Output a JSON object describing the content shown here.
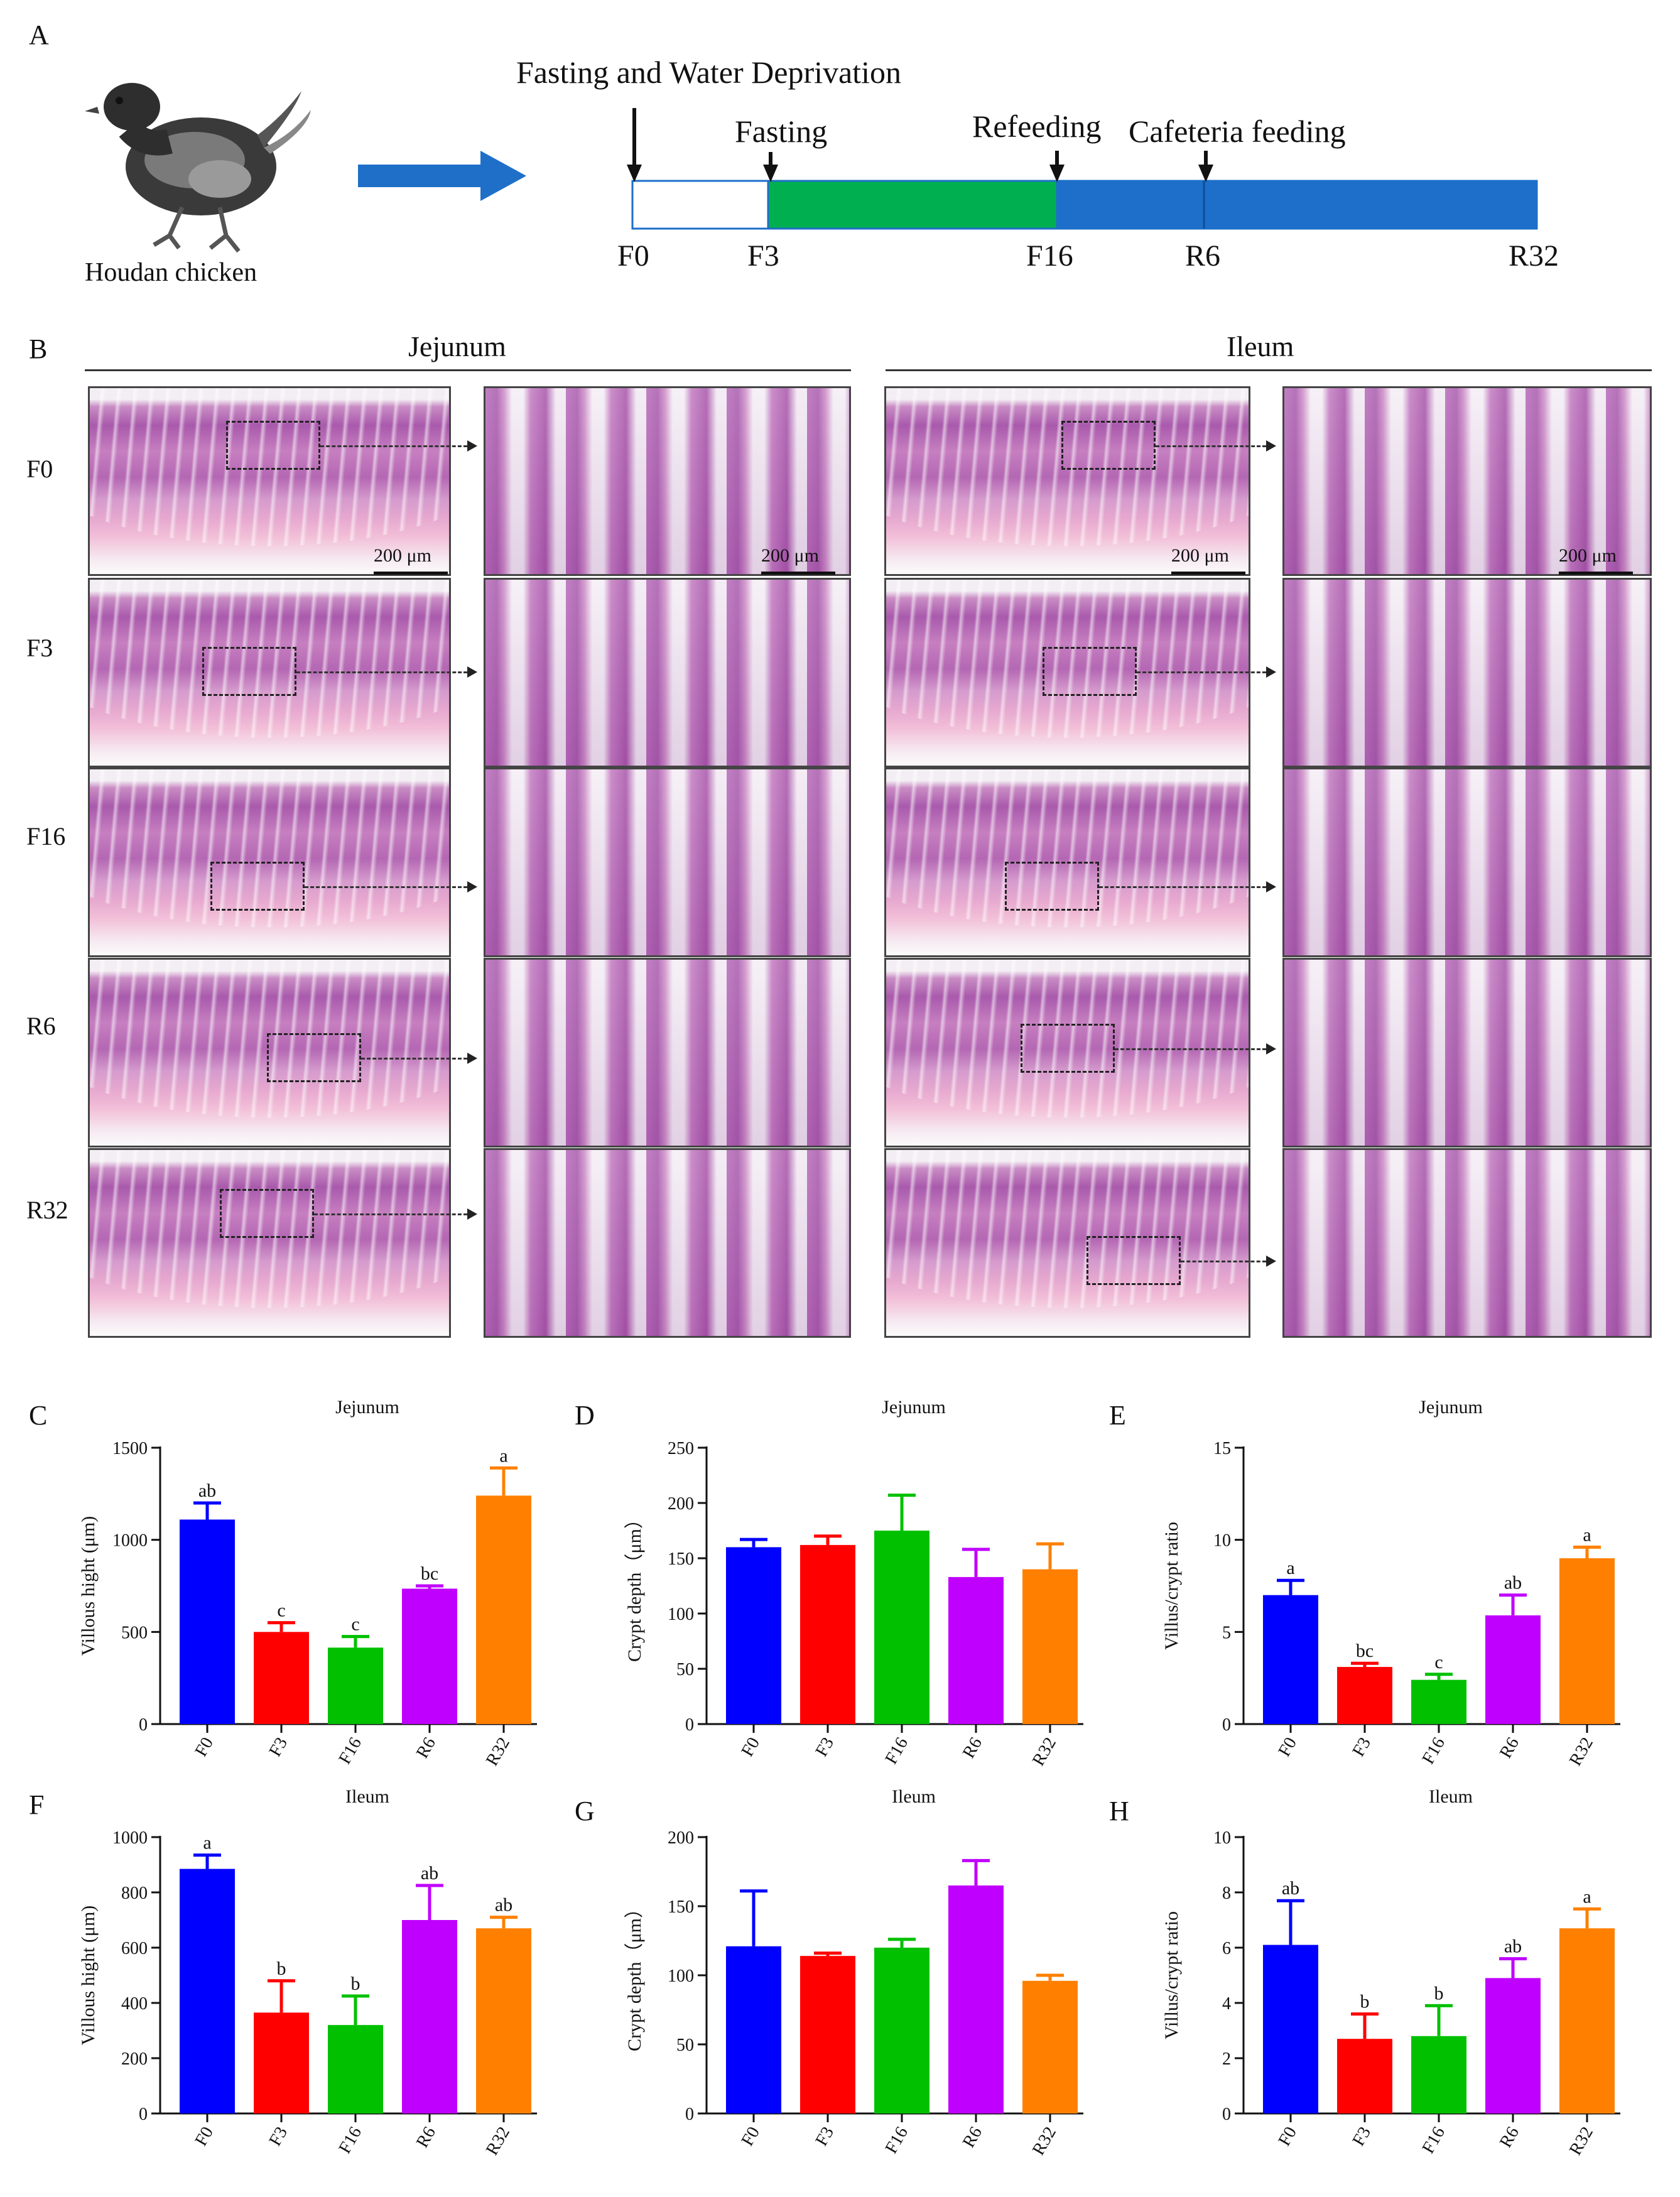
{
  "panel_a": {
    "letter": "A",
    "chicken_label": "Houdan chicken",
    "top_label": "Fasting and Water Deprivation",
    "events": [
      {
        "label": "Fasting"
      },
      {
        "label": "Refeeding"
      },
      {
        "label": "Cafeteria feeding"
      }
    ],
    "timepoints": [
      "F0",
      "F3",
      "F16",
      "R6",
      "R32"
    ],
    "colors": {
      "arrow": "#1f6fc9",
      "fasting_water": "#ffffff",
      "fasting": "#00b050",
      "refeeding": "#1d6fc9"
    }
  },
  "panel_b": {
    "letter": "B",
    "sections": [
      "Jejunum",
      "Ileum"
    ],
    "rows": [
      "F0",
      "F3",
      "F16",
      "R6",
      "R32"
    ],
    "scale_label": "200 μm"
  },
  "chart_data": [
    {
      "panel": "C",
      "type": "bar",
      "title": "Jejunum",
      "ylabel": "Villous hight (μm)",
      "categories": [
        "F0",
        "F3",
        "F16",
        "R6",
        "R32"
      ],
      "values": [
        1110,
        500,
        415,
        735,
        1240
      ],
      "errors": [
        90,
        50,
        60,
        15,
        150
      ],
      "letters": [
        "ab",
        "c",
        "c",
        "bc",
        "a"
      ],
      "ylim": [
        0,
        1500
      ],
      "yticks": [
        0,
        500,
        1000,
        1500
      ]
    },
    {
      "panel": "D",
      "type": "bar",
      "title": "Jejunum",
      "ylabel": "Crypt depth（μm）",
      "categories": [
        "F0",
        "F3",
        "F16",
        "R6",
        "R32"
      ],
      "values": [
        160,
        162,
        175,
        133,
        140
      ],
      "errors": [
        7,
        8,
        32,
        25,
        23
      ],
      "letters": [
        "",
        "",
        "",
        "",
        ""
      ],
      "ylim": [
        0,
        250
      ],
      "yticks": [
        0,
        50,
        100,
        150,
        200,
        250
      ]
    },
    {
      "panel": "E",
      "type": "bar",
      "title": "Jejunum",
      "ylabel": "Villus/crypt ratio",
      "categories": [
        "F0",
        "F3",
        "F16",
        "R6",
        "R32"
      ],
      "values": [
        7.0,
        3.1,
        2.4,
        5.9,
        9.0
      ],
      "errors": [
        0.8,
        0.2,
        0.3,
        1.1,
        0.6
      ],
      "letters": [
        "a",
        "bc",
        "c",
        "ab",
        "a"
      ],
      "ylim": [
        0,
        15
      ],
      "yticks": [
        0,
        5,
        10,
        15
      ]
    },
    {
      "panel": "F",
      "type": "bar",
      "title": "Ileum",
      "ylabel": "Villous hight (μm)",
      "categories": [
        "F0",
        "F3",
        "F16",
        "R6",
        "R32"
      ],
      "values": [
        885,
        365,
        320,
        700,
        670
      ],
      "errors": [
        50,
        115,
        105,
        125,
        40
      ],
      "letters": [
        "a",
        "b",
        "b",
        "ab",
        "ab"
      ],
      "ylim": [
        0,
        1000
      ],
      "yticks": [
        0,
        200,
        400,
        600,
        800,
        1000
      ]
    },
    {
      "panel": "G",
      "type": "bar",
      "title": "Ileum",
      "ylabel": "Crypt depth（μm）",
      "categories": [
        "F0",
        "F3",
        "F16",
        "R6",
        "R32"
      ],
      "values": [
        121,
        114,
        120,
        165,
        96
      ],
      "errors": [
        40,
        2,
        6,
        18,
        4
      ],
      "letters": [
        "",
        "",
        "",
        "",
        ""
      ],
      "ylim": [
        0,
        200
      ],
      "yticks": [
        0,
        50,
        100,
        150,
        200
      ]
    },
    {
      "panel": "H",
      "type": "bar",
      "title": "Ileum",
      "ylabel": "Villus/crypt ratio",
      "categories": [
        "F0",
        "F3",
        "F16",
        "R6",
        "R32"
      ],
      "values": [
        6.1,
        2.7,
        2.8,
        4.9,
        6.7
      ],
      "errors": [
        1.6,
        0.9,
        1.1,
        0.7,
        0.7
      ],
      "letters": [
        "ab",
        "b",
        "b",
        "ab",
        "a"
      ],
      "ylim": [
        0,
        10
      ],
      "yticks": [
        0,
        2,
        4,
        6,
        8,
        10
      ]
    }
  ],
  "bar_colors": [
    "#0000ff",
    "#ff0000",
    "#00c000",
    "#c000ff",
    "#ff8000"
  ]
}
